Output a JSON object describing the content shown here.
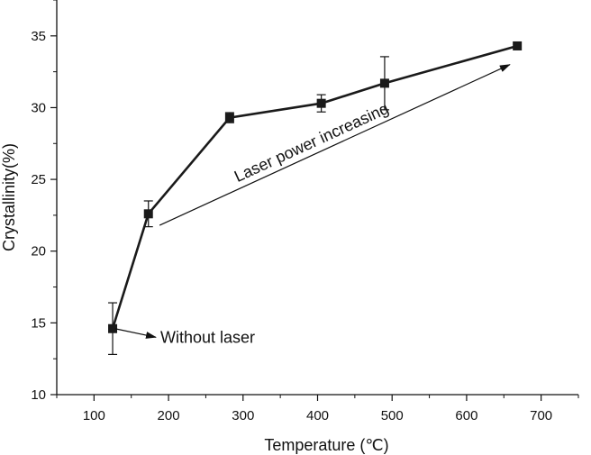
{
  "chart_data": {
    "type": "line",
    "xlabel": "Temperature (℃)",
    "ylabel": "Crystallinity(%)",
    "xlim": [
      50,
      750
    ],
    "ylim": [
      10,
      37.5
    ],
    "x_ticks": [
      100,
      200,
      300,
      400,
      500,
      600,
      700
    ],
    "y_ticks": [
      10,
      15,
      20,
      25,
      30,
      35
    ],
    "grid": false,
    "series": [
      {
        "marker": "square",
        "color": "#1a1a1a",
        "points": [
          {
            "x": 125,
            "y": 14.6,
            "err": 1.8
          },
          {
            "x": 173,
            "y": 22.6,
            "err": 0.9
          },
          {
            "x": 282,
            "y": 29.3,
            "err": 0.35
          },
          {
            "x": 405,
            "y": 30.3,
            "err": 0.6
          },
          {
            "x": 490,
            "y": 31.7,
            "err": 1.85
          },
          {
            "x": 668,
            "y": 34.3,
            "err": 0
          }
        ]
      }
    ],
    "annotations": [
      {
        "text": "Without laser",
        "arrow_from": {
          "x": 128,
          "y": 14.6
        },
        "arrow_to": {
          "x": 183,
          "y": 14.0
        }
      },
      {
        "text": "Laser power increasing",
        "arrow_from": {
          "x": 188,
          "y": 21.8
        },
        "arrow_to": {
          "x": 658,
          "y": 33.0
        }
      }
    ]
  }
}
